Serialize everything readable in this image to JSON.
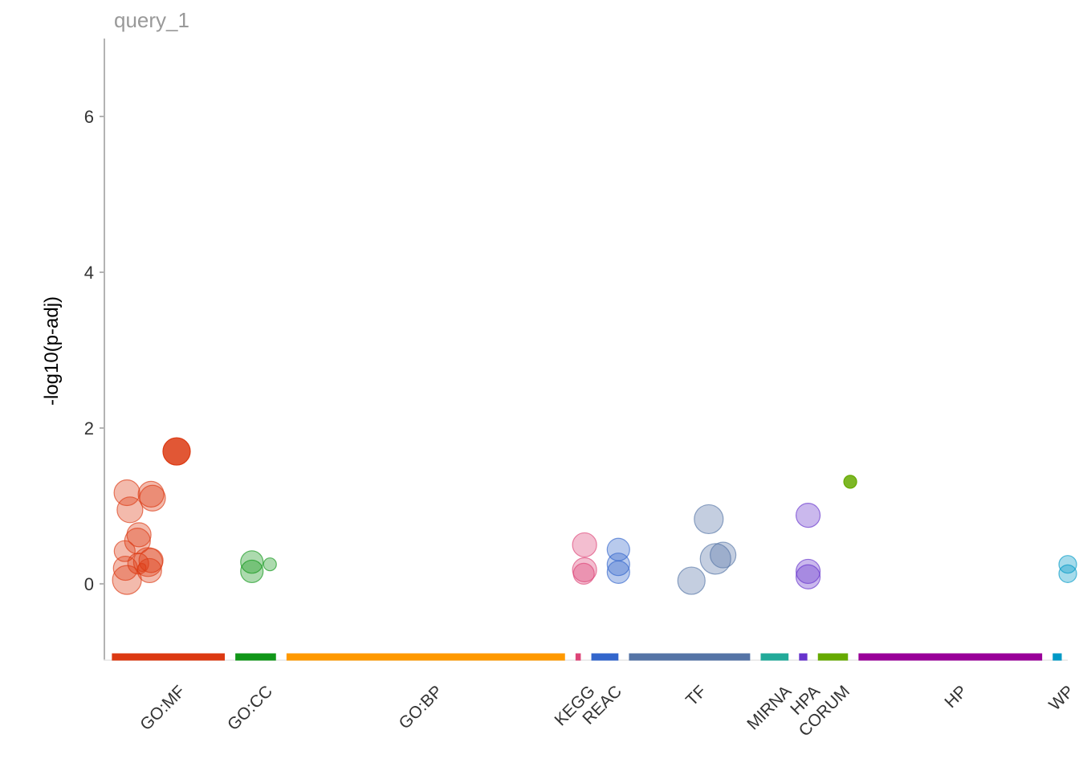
{
  "chart_data": {
    "type": "scatter",
    "title": "query_1",
    "ylabel": "-log10(p-adj)",
    "xlabel": "",
    "ylim": [
      -0.98,
      7
    ],
    "yticks": [
      0,
      2,
      4,
      6
    ],
    "grid": false,
    "legend": "none",
    "xlim": [
      0,
      12.8
    ],
    "sources": [
      {
        "name": "GO:MF",
        "color": "#dc3912",
        "start": 0.1,
        "end": 1.6
      },
      {
        "name": "GO:CC",
        "color": "#109618",
        "start": 1.74,
        "end": 2.28
      },
      {
        "name": "GO:BP",
        "color": "#ff9900",
        "start": 2.42,
        "end": 6.12
      },
      {
        "name": "KEGG",
        "color": "#dd4477",
        "start": 6.26,
        "end": 6.33
      },
      {
        "name": "REAC",
        "color": "#3366cc",
        "start": 6.47,
        "end": 6.83
      },
      {
        "name": "TF",
        "color": "#5574a6",
        "start": 6.97,
        "end": 8.58
      },
      {
        "name": "MIRNA",
        "color": "#22aa99",
        "start": 8.72,
        "end": 9.09
      },
      {
        "name": "HPA",
        "color": "#6633cc",
        "start": 9.23,
        "end": 9.34
      },
      {
        "name": "CORUM",
        "color": "#66aa00",
        "start": 9.48,
        "end": 9.88
      },
      {
        "name": "HP",
        "color": "#990099",
        "start": 10.02,
        "end": 12.46
      },
      {
        "name": "WP",
        "color": "#0099c6",
        "start": 12.6,
        "end": 12.72
      }
    ],
    "series": [
      {
        "source": "GO:MF",
        "points": [
          {
            "x": 0.3,
            "y": 1.17,
            "size": 1.6,
            "alpha": 0.35
          },
          {
            "x": 0.34,
            "y": 0.95,
            "size": 1.6,
            "alpha": 0.35
          },
          {
            "x": 0.46,
            "y": 0.63,
            "size": 1.5,
            "alpha": 0.35
          },
          {
            "x": 0.44,
            "y": 0.55,
            "size": 1.6,
            "alpha": 0.35
          },
          {
            "x": 0.27,
            "y": 0.42,
            "size": 1.3,
            "alpha": 0.35
          },
          {
            "x": 0.45,
            "y": 0.26,
            "size": 1.3,
            "alpha": 0.35
          },
          {
            "x": 0.58,
            "y": 0.28,
            "size": 1.8,
            "alpha": 0.35
          },
          {
            "x": 0.62,
            "y": 0.3,
            "size": 1.5,
            "alpha": 0.35
          },
          {
            "x": 0.28,
            "y": 0.2,
            "size": 1.5,
            "alpha": 0.35
          },
          {
            "x": 0.5,
            "y": 0.21,
            "size": 0.5,
            "alpha": 0.35
          },
          {
            "x": 0.6,
            "y": 0.17,
            "size": 1.5,
            "alpha": 0.35
          },
          {
            "x": 0.3,
            "y": 0.05,
            "size": 1.8,
            "alpha": 0.35
          },
          {
            "x": 0.62,
            "y": 1.15,
            "size": 1.6,
            "alpha": 0.35
          },
          {
            "x": 0.64,
            "y": 1.1,
            "size": 1.6,
            "alpha": 0.35
          },
          {
            "x": 0.96,
            "y": 1.7,
            "size": 1.7,
            "alpha": 0.85
          }
        ]
      },
      {
        "source": "GO:CC",
        "points": [
          {
            "x": 1.96,
            "y": 0.28,
            "size": 1.4,
            "alpha": 0.35
          },
          {
            "x": 1.96,
            "y": 0.16,
            "size": 1.4,
            "alpha": 0.35
          },
          {
            "x": 2.2,
            "y": 0.25,
            "size": 0.8,
            "alpha": 0.35
          }
        ]
      },
      {
        "source": "KEGG",
        "points": [
          {
            "x": 6.38,
            "y": 0.5,
            "size": 1.5,
            "alpha": 0.35
          },
          {
            "x": 6.38,
            "y": 0.18,
            "size": 1.5,
            "alpha": 0.35
          },
          {
            "x": 6.37,
            "y": 0.13,
            "size": 1.3,
            "alpha": 0.35
          }
        ]
      },
      {
        "source": "REAC",
        "points": [
          {
            "x": 6.83,
            "y": 0.44,
            "size": 1.4,
            "alpha": 0.35
          },
          {
            "x": 6.83,
            "y": 0.25,
            "size": 1.4,
            "alpha": 0.35
          },
          {
            "x": 6.83,
            "y": 0.15,
            "size": 1.4,
            "alpha": 0.35
          }
        ]
      },
      {
        "source": "TF",
        "points": [
          {
            "x": 8.03,
            "y": 0.83,
            "size": 1.8,
            "alpha": 0.35
          },
          {
            "x": 8.12,
            "y": 0.32,
            "size": 1.9,
            "alpha": 0.35
          },
          {
            "x": 8.22,
            "y": 0.37,
            "size": 1.6,
            "alpha": 0.35
          },
          {
            "x": 7.8,
            "y": 0.04,
            "size": 1.7,
            "alpha": 0.35
          }
        ]
      },
      {
        "source": "HPA",
        "points": [
          {
            "x": 9.35,
            "y": 0.88,
            "size": 1.5,
            "alpha": 0.35
          },
          {
            "x": 9.35,
            "y": 0.16,
            "size": 1.5,
            "alpha": 0.35
          },
          {
            "x": 9.35,
            "y": 0.09,
            "size": 1.5,
            "alpha": 0.35
          }
        ]
      },
      {
        "source": "CORUM",
        "points": [
          {
            "x": 9.91,
            "y": 1.31,
            "size": 0.8,
            "alpha": 0.85
          }
        ]
      },
      {
        "source": "WP",
        "points": [
          {
            "x": 12.8,
            "y": 0.25,
            "size": 1.1,
            "alpha": 0.35
          },
          {
            "x": 12.8,
            "y": 0.13,
            "size": 1.1,
            "alpha": 0.35
          }
        ]
      }
    ]
  }
}
